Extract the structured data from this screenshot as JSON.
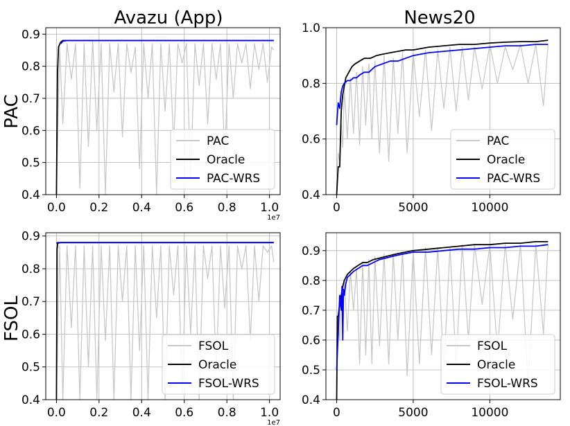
{
  "figure": {
    "column_titles": [
      "Avazu (App)",
      "News20"
    ],
    "row_labels": [
      "PAC",
      "FSOL"
    ]
  },
  "colors": {
    "gray": "#c8c8c8",
    "black": "#000000",
    "blue": "#0000ff",
    "grid": "#b0b0b0"
  },
  "chart_data": [
    {
      "id": "pac-avazu",
      "type": "line",
      "x_ticks": [
        "0.0",
        "0.2",
        "0.4",
        "0.6",
        "0.8",
        "1.0"
      ],
      "x_tick_values": [
        0,
        0.2,
        0.4,
        0.6,
        0.8,
        1.0
      ],
      "x_offset_label": "1e7",
      "xlim": [
        -0.05,
        1.05
      ],
      "y_ticks": [
        "0.4",
        "0.5",
        "0.6",
        "0.7",
        "0.8",
        "0.9"
      ],
      "y_tick_values": [
        0.4,
        0.5,
        0.6,
        0.7,
        0.8,
        0.9
      ],
      "ylim": [
        0.4,
        0.92
      ],
      "grid": true,
      "legend_position": "bottom-right",
      "series": [
        {
          "name": "PAC",
          "color": "#c8c8c8",
          "x": [
            0.0,
            0.015,
            0.03,
            0.05,
            0.07,
            0.09,
            0.11,
            0.13,
            0.15,
            0.17,
            0.19,
            0.21,
            0.23,
            0.25,
            0.27,
            0.29,
            0.31,
            0.33,
            0.35,
            0.37,
            0.39,
            0.41,
            0.43,
            0.45,
            0.47,
            0.49,
            0.51,
            0.53,
            0.55,
            0.57,
            0.59,
            0.61,
            0.63,
            0.65,
            0.67,
            0.69,
            0.71,
            0.73,
            0.75,
            0.77,
            0.79,
            0.81,
            0.83,
            0.85,
            0.87,
            0.89,
            0.91,
            0.93,
            0.95,
            0.97,
            0.99,
            1.01,
            1.02
          ],
          "y": [
            0.4,
            0.86,
            0.62,
            0.87,
            0.76,
            0.87,
            0.42,
            0.87,
            0.55,
            0.88,
            0.6,
            0.87,
            0.4,
            0.87,
            0.72,
            0.87,
            0.58,
            0.87,
            0.78,
            0.86,
            0.48,
            0.87,
            0.7,
            0.87,
            0.4,
            0.87,
            0.66,
            0.87,
            0.56,
            0.87,
            0.81,
            0.87,
            0.45,
            0.87,
            0.74,
            0.87,
            0.62,
            0.87,
            0.76,
            0.87,
            0.52,
            0.87,
            0.7,
            0.87,
            0.81,
            0.87,
            0.73,
            0.87,
            0.79,
            0.87,
            0.75,
            0.86,
            0.85
          ]
        },
        {
          "name": "Oracle",
          "color": "#000000",
          "x": [
            0.0,
            0.005,
            0.01,
            0.02,
            0.03,
            0.05,
            1.02
          ],
          "y": [
            0.4,
            0.78,
            0.86,
            0.875,
            0.88,
            0.88,
            0.88
          ]
        },
        {
          "name": "PAC-WRS",
          "color": "#0000ff",
          "x": [
            0.02,
            0.03,
            0.05,
            1.02
          ],
          "y": [
            0.87,
            0.878,
            0.88,
            0.88
          ]
        }
      ]
    },
    {
      "id": "pac-news20",
      "type": "line",
      "x_ticks": [
        "0",
        "5000",
        "10000"
      ],
      "x_tick_values": [
        0,
        5000,
        10000
      ],
      "x_offset_label": "",
      "xlim": [
        -700,
        14600
      ],
      "y_ticks": [
        "0.4",
        "0.6",
        "0.8",
        "1.0"
      ],
      "y_tick_values": [
        0.4,
        0.6,
        0.8,
        1.0
      ],
      "ylim": [
        0.4,
        1.0
      ],
      "grid": true,
      "legend_position": "bottom-right",
      "series": [
        {
          "name": "PAC",
          "color": "#c8c8c8",
          "x": [
            0,
            100,
            200,
            300,
            400,
            500,
            700,
            900,
            1100,
            1300,
            1500,
            1700,
            1900,
            2100,
            2300,
            2500,
            2800,
            3100,
            3400,
            3700,
            4000,
            4300,
            4600,
            5000,
            5400,
            5800,
            6200,
            6600,
            7000,
            7400,
            7800,
            8200,
            8600,
            9000,
            9500,
            10000,
            10500,
            11000,
            11500,
            12000,
            12500,
            13000,
            13500,
            13800
          ],
          "y": [
            0.45,
            0.55,
            0.52,
            0.65,
            0.57,
            0.78,
            0.6,
            0.82,
            0.62,
            0.84,
            0.58,
            0.86,
            0.65,
            0.87,
            0.6,
            0.88,
            0.55,
            0.9,
            0.52,
            0.89,
            0.62,
            0.91,
            0.55,
            0.91,
            0.68,
            0.92,
            0.63,
            0.92,
            0.71,
            0.93,
            0.7,
            0.93,
            0.74,
            0.93,
            0.78,
            0.94,
            0.8,
            0.93,
            0.85,
            0.94,
            0.8,
            0.94,
            0.72,
            0.94
          ]
        },
        {
          "name": "Oracle",
          "color": "#000000",
          "x": [
            0,
            100,
            200,
            300,
            400,
            500,
            600,
            800,
            1000,
            1200,
            1500,
            1800,
            2200,
            2600,
            3000,
            3500,
            4000,
            4500,
            5000,
            6000,
            7000,
            8000,
            9000,
            10000,
            11000,
            12000,
            13000,
            13800
          ],
          "y": [
            0.4,
            0.5,
            0.5,
            0.7,
            0.76,
            0.79,
            0.82,
            0.84,
            0.86,
            0.87,
            0.88,
            0.89,
            0.89,
            0.9,
            0.905,
            0.91,
            0.915,
            0.92,
            0.92,
            0.93,
            0.935,
            0.94,
            0.94,
            0.945,
            0.948,
            0.95,
            0.95,
            0.955
          ]
        },
        {
          "name": "PAC-WRS",
          "color": "#0000ff",
          "x": [
            0,
            100,
            200,
            300,
            400,
            500,
            700,
            900,
            1100,
            1300,
            1500,
            1800,
            2100,
            2500,
            3000,
            3500,
            4000,
            4500,
            5000,
            6000,
            7000,
            8000,
            9000,
            10000,
            11000,
            12000,
            13000,
            13800
          ],
          "y": [
            0.65,
            0.73,
            0.71,
            0.77,
            0.79,
            0.8,
            0.81,
            0.81,
            0.82,
            0.82,
            0.83,
            0.84,
            0.84,
            0.86,
            0.87,
            0.88,
            0.88,
            0.89,
            0.9,
            0.91,
            0.915,
            0.92,
            0.925,
            0.93,
            0.935,
            0.935,
            0.94,
            0.94
          ]
        }
      ]
    },
    {
      "id": "fsol-avazu",
      "type": "line",
      "x_ticks": [
        "0.0",
        "0.2",
        "0.4",
        "0.6",
        "0.8",
        "1.0"
      ],
      "x_tick_values": [
        0,
        0.2,
        0.4,
        0.6,
        0.8,
        1.0
      ],
      "x_offset_label": "1e7",
      "xlim": [
        -0.05,
        1.05
      ],
      "y_ticks": [
        "0.4",
        "0.5",
        "0.6",
        "0.7",
        "0.8",
        "0.9"
      ],
      "y_tick_values": [
        0.4,
        0.5,
        0.6,
        0.7,
        0.8,
        0.9
      ],
      "ylim": [
        0.4,
        0.91
      ],
      "grid": true,
      "legend_position": "bottom-right",
      "series": [
        {
          "name": "FSOL",
          "color": "#c8c8c8",
          "x": [
            0.0,
            0.015,
            0.03,
            0.05,
            0.07,
            0.09,
            0.11,
            0.13,
            0.15,
            0.17,
            0.19,
            0.21,
            0.23,
            0.25,
            0.27,
            0.29,
            0.31,
            0.33,
            0.35,
            0.37,
            0.39,
            0.41,
            0.43,
            0.45,
            0.47,
            0.49,
            0.51,
            0.53,
            0.55,
            0.57,
            0.59,
            0.61,
            0.63,
            0.65,
            0.67,
            0.69,
            0.71,
            0.73,
            0.75,
            0.77,
            0.79,
            0.81,
            0.83,
            0.85,
            0.87,
            0.89,
            0.91,
            0.93,
            0.95,
            0.97,
            0.99,
            1.01,
            1.02
          ],
          "y": [
            0.4,
            0.87,
            0.4,
            0.87,
            0.62,
            0.87,
            0.4,
            0.87,
            0.5,
            0.87,
            0.4,
            0.87,
            0.58,
            0.87,
            0.4,
            0.87,
            0.7,
            0.87,
            0.4,
            0.87,
            0.55,
            0.87,
            0.4,
            0.87,
            0.65,
            0.87,
            0.4,
            0.87,
            0.72,
            0.87,
            0.42,
            0.87,
            0.6,
            0.87,
            0.4,
            0.87,
            0.77,
            0.87,
            0.48,
            0.87,
            0.68,
            0.87,
            0.4,
            0.87,
            0.8,
            0.87,
            0.58,
            0.87,
            0.7,
            0.87,
            0.85,
            0.87,
            0.82
          ]
        },
        {
          "name": "Oracle",
          "color": "#000000",
          "x": [
            0.0,
            0.003,
            0.006,
            0.02,
            1.02
          ],
          "y": [
            0.4,
            0.86,
            0.878,
            0.88,
            0.88
          ]
        },
        {
          "name": "FSOL-WRS",
          "color": "#0000ff",
          "x": [
            0.0,
            0.005,
            0.02,
            1.02
          ],
          "y": [
            0.878,
            0.88,
            0.88,
            0.88
          ]
        }
      ]
    },
    {
      "id": "fsol-news20",
      "type": "line",
      "x_ticks": [
        "0",
        "5000",
        "10000"
      ],
      "x_tick_values": [
        0,
        5000,
        10000
      ],
      "x_offset_label": "",
      "xlim": [
        -700,
        14600
      ],
      "y_ticks": [
        "0.4",
        "0.5",
        "0.6",
        "0.7",
        "0.8",
        "0.9"
      ],
      "y_tick_values": [
        0.4,
        0.5,
        0.6,
        0.7,
        0.8,
        0.9
      ],
      "ylim": [
        0.4,
        0.96
      ],
      "grid": true,
      "legend_position": "bottom-right",
      "series": [
        {
          "name": "FSOL",
          "color": "#c8c8c8",
          "x": [
            0,
            100,
            200,
            300,
            400,
            500,
            700,
            900,
            1100,
            1300,
            1500,
            1700,
            1900,
            2100,
            2300,
            2500,
            2800,
            3100,
            3400,
            3700,
            4000,
            4300,
            4600,
            5000,
            5400,
            5800,
            6200,
            6600,
            7000,
            7400,
            7800,
            8200,
            8600,
            9000,
            9500,
            10000,
            10500,
            11000,
            11500,
            12000,
            12500,
            13000,
            13500,
            13800
          ],
          "y": [
            0.5,
            0.65,
            0.6,
            0.74,
            0.68,
            0.8,
            0.63,
            0.83,
            0.7,
            0.84,
            0.52,
            0.86,
            0.55,
            0.87,
            0.52,
            0.88,
            0.58,
            0.89,
            0.52,
            0.89,
            0.6,
            0.9,
            0.48,
            0.9,
            0.52,
            0.91,
            0.55,
            0.91,
            0.5,
            0.91,
            0.52,
            0.92,
            0.6,
            0.92,
            0.72,
            0.92,
            0.56,
            0.92,
            0.67,
            0.92,
            0.45,
            0.92,
            0.62,
            0.92
          ]
        },
        {
          "name": "Oracle",
          "color": "#000000",
          "x": [
            0,
            50,
            100,
            200,
            300,
            400,
            500,
            700,
            900,
            1100,
            1400,
            1700,
            2000,
            2400,
            2800,
            3200,
            3600,
            4000,
            4500,
            5000,
            6000,
            7000,
            8000,
            9000,
            10000,
            11000,
            12000,
            13000,
            13800
          ],
          "y": [
            0.4,
            0.68,
            0.68,
            0.72,
            0.75,
            0.78,
            0.8,
            0.82,
            0.83,
            0.84,
            0.85,
            0.86,
            0.86,
            0.87,
            0.875,
            0.88,
            0.885,
            0.89,
            0.895,
            0.9,
            0.905,
            0.91,
            0.915,
            0.92,
            0.92,
            0.925,
            0.925,
            0.93,
            0.93
          ]
        },
        {
          "name": "FSOL-WRS",
          "color": "#0000ff",
          "x": [
            0,
            100,
            200,
            300,
            350,
            400,
            450,
            500,
            600,
            700,
            900,
            1100,
            1400,
            1700,
            2000,
            2400,
            2800,
            3200,
            3600,
            4000,
            4500,
            5000,
            6000,
            7000,
            8000,
            9000,
            10000,
            11000,
            12000,
            13000,
            13800
          ],
          "y": [
            0.5,
            0.62,
            0.75,
            0.7,
            0.78,
            0.6,
            0.77,
            0.75,
            0.79,
            0.81,
            0.82,
            0.83,
            0.84,
            0.85,
            0.85,
            0.86,
            0.87,
            0.875,
            0.88,
            0.885,
            0.89,
            0.895,
            0.895,
            0.9,
            0.905,
            0.905,
            0.91,
            0.91,
            0.915,
            0.915,
            0.92
          ]
        }
      ]
    }
  ]
}
